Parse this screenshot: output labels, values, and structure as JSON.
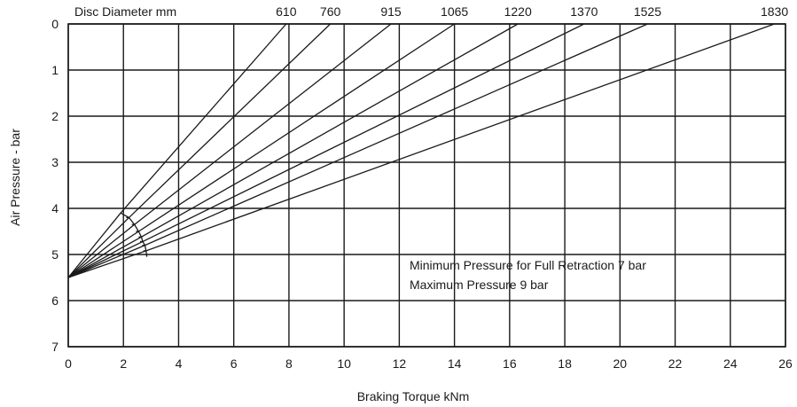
{
  "chart_data": {
    "type": "line",
    "series_label": "Disc Diameter mm",
    "xlabel": "Braking Torque kNm",
    "ylabel": "Air Pressure - bar",
    "xlim": [
      0,
      26
    ],
    "ylim": [
      7,
      0
    ],
    "x_ticks": [
      "0",
      "2",
      "4",
      "6",
      "8",
      "10",
      "12",
      "14",
      "16",
      "18",
      "20",
      "22",
      "24",
      "26"
    ],
    "y_ticks": [
      "0",
      "1",
      "2",
      "3",
      "4",
      "5",
      "6",
      "7"
    ],
    "grid": true,
    "series": [
      {
        "name": "610",
        "points": [
          [
            0,
            5.5
          ],
          [
            1.9,
            4.1
          ],
          [
            7.9,
            0
          ]
        ]
      },
      {
        "name": "760",
        "points": [
          [
            0,
            5.5
          ],
          [
            2.2,
            4.2
          ],
          [
            9.5,
            0
          ]
        ]
      },
      {
        "name": "915",
        "points": [
          [
            0,
            5.5
          ],
          [
            2.4,
            4.35
          ],
          [
            11.7,
            0
          ]
        ]
      },
      {
        "name": "1065",
        "points": [
          [
            0,
            5.5
          ],
          [
            2.55,
            4.5
          ],
          [
            14.0,
            0
          ]
        ]
      },
      {
        "name": "1220",
        "points": [
          [
            0,
            5.5
          ],
          [
            2.65,
            4.62
          ],
          [
            16.3,
            0
          ]
        ]
      },
      {
        "name": "1370",
        "points": [
          [
            0,
            5.5
          ],
          [
            2.7,
            4.72
          ],
          [
            18.7,
            0
          ]
        ]
      },
      {
        "name": "1525",
        "points": [
          [
            0,
            5.5
          ],
          [
            2.78,
            4.8
          ],
          [
            21.0,
            0
          ]
        ]
      },
      {
        "name": "1830",
        "points": [
          [
            0,
            5.5
          ],
          [
            2.82,
            4.92
          ],
          [
            25.6,
            0
          ]
        ]
      }
    ],
    "threshold_curve": [
      [
        1.9,
        4.1
      ],
      [
        2.2,
        4.2
      ],
      [
        2.4,
        4.35
      ],
      [
        2.55,
        4.5
      ],
      [
        2.65,
        4.62
      ],
      [
        2.7,
        4.72
      ],
      [
        2.78,
        4.8
      ],
      [
        2.82,
        4.92
      ],
      [
        2.85,
        5.05
      ]
    ],
    "annotations": [
      "Minimum Pressure for Full Retraction 7 bar",
      "Maximum Pressure 9 bar"
    ]
  }
}
